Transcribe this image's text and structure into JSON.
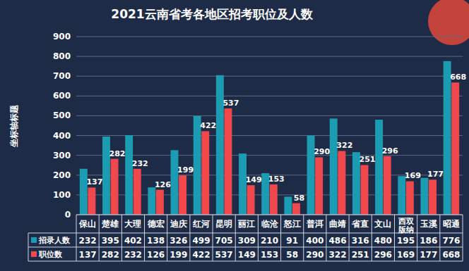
{
  "chart_data": {
    "type": "bar",
    "title": "2021云南省考各地区招考职位及人数",
    "y_label": "坐标轴标题",
    "categories": [
      "保山",
      "楚雄",
      "大理",
      "德宏",
      "迪庆",
      "红河",
      "昆明",
      "丽江",
      "临沧",
      "怒江",
      "普洱",
      "曲靖",
      "省直",
      "文山",
      "西双版纳",
      "玉溪",
      "昭通"
    ],
    "series": [
      {
        "name": "招录人数",
        "color": "#1b9cb3",
        "values": [
          232,
          395,
          402,
          138,
          326,
          499,
          705,
          309,
          210,
          91,
          400,
          486,
          316,
          480,
          195,
          186,
          776
        ]
      },
      {
        "name": "职位数",
        "color": "#f0484c",
        "data_labels": true,
        "values": [
          137,
          282,
          232,
          126,
          199,
          422,
          537,
          149,
          153,
          58,
          290,
          322,
          251,
          296,
          169,
          177,
          668
        ]
      }
    ],
    "ylim": [
      0,
      900
    ],
    "yticks": [
      0,
      100,
      200,
      300,
      400,
      500,
      600,
      700,
      800,
      900
    ],
    "grid": true
  }
}
